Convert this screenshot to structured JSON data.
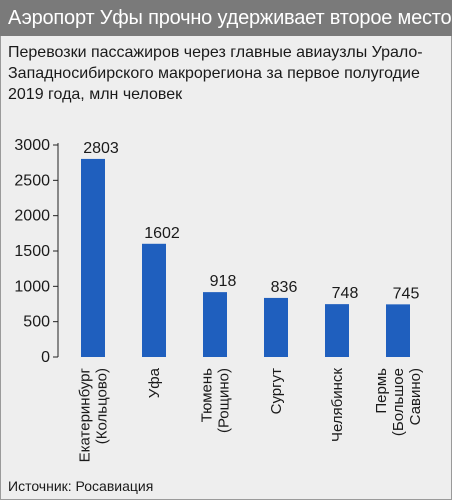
{
  "header": {
    "title": "Аэропорт Уфы прочно удерживает второе место"
  },
  "source": "Источник: Росавиация",
  "colors": {
    "bar": "#1f5fbe",
    "header_bg": "#7a7a7a",
    "background": "#eeeeee"
  },
  "chart_data": {
    "type": "bar",
    "title": "Перевозки пассажиров через главные авиаузлы Урало-Западносибирского макрорегиона за первое полугодие 2019 года, млн человек",
    "xlabel": "",
    "ylabel": "",
    "ylim": [
      0,
      3000
    ],
    "yticks": [
      0,
      500,
      1000,
      1500,
      2000,
      2500,
      3000
    ],
    "grid": false,
    "categories": [
      [
        "Екатеринбург",
        "(Кольцово)"
      ],
      [
        "Уфа"
      ],
      [
        "Тюмень",
        "(Рощино)"
      ],
      [
        "Сургут"
      ],
      [
        "Челябинск"
      ],
      [
        "Пермь",
        "(Большое",
        "Савино)"
      ]
    ],
    "values": [
      2803,
      1602,
      918,
      836,
      748,
      745
    ]
  }
}
